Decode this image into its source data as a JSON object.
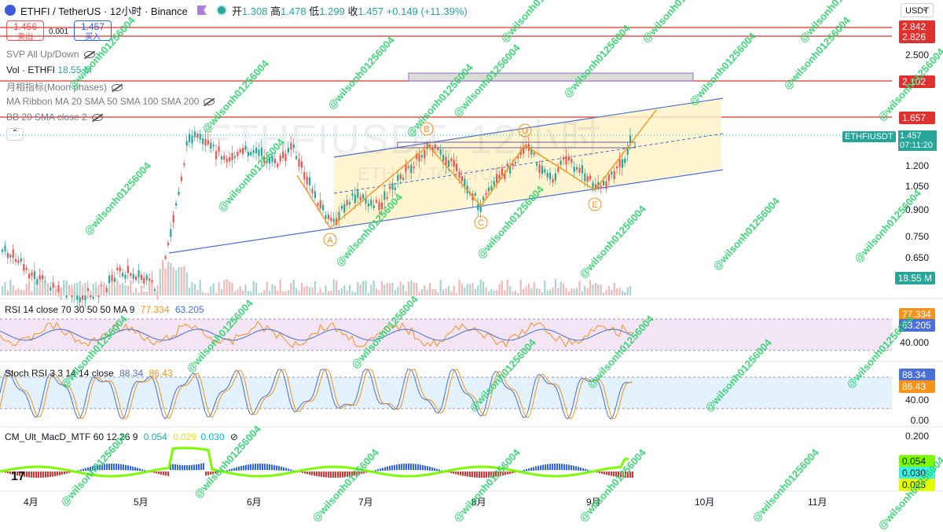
{
  "header": {
    "symbol_title": "ETHFI / TetherUS · 12小时 · Binance",
    "open_label": "开",
    "open": "1.308",
    "high_label": "高",
    "high": "1.478",
    "low_label": "低",
    "low": "1.299",
    "close_label": "收",
    "close": "1.457",
    "change": "+0.149 (+11.39%)",
    "currency_button": "USDT"
  },
  "trade": {
    "sell_price": "1.456",
    "sell_label": "卖出",
    "spread": "0.001",
    "buy_price": "1.457",
    "buy_label": "买入"
  },
  "indicators": {
    "svp": "SVP All Up/Down",
    "vol_name": "Vol · ETHFI",
    "vol_value": "18.55 M",
    "moon": "月相指标(Moon phases)",
    "ma_ribbon": "MA Ribbon MA 20 SMA 50 SMA 100 SMA 200",
    "bb": "BB 20 SMA close 2"
  },
  "chart_overlay": {
    "watermark_symbol": "ETHFIUSDT, 12小时",
    "watermark_sub": "ETHFI / TetherUS",
    "wave_labels": [
      "A",
      "B",
      "C",
      "D",
      "E"
    ]
  },
  "price_axis": {
    "ticks": [
      "2.500",
      "1.200",
      "1.050",
      "0.900",
      "0.750",
      "0.650"
    ],
    "tags": [
      {
        "text": "2.842",
        "color": "#e0312f"
      },
      {
        "text": "2.826",
        "color": "#e0312f"
      },
      {
        "text": "2.102",
        "color": "#e0312f"
      },
      {
        "text": "1.657",
        "color": "#e0312f"
      }
    ],
    "symbol_tag": "ETHFIUSDT",
    "last_price": "1.457",
    "countdown": "07:11:20",
    "volume_tag": "18.55 M"
  },
  "rsi": {
    "label": "RSI 14 close 70 30 50 50 MA 9",
    "value1": "77.334",
    "value2": "63.205",
    "axis_tick": "40.000",
    "tag1": "77.334",
    "tag2": "63.205"
  },
  "stoch": {
    "label": "Stoch RSI 3 3 14 14 close",
    "value1": "88.34",
    "value2": "86.43",
    "axis_ticks": [
      "40.00",
      "0.00"
    ],
    "tag1": "88.34",
    "tag2": "86.43"
  },
  "macd": {
    "label": "CM_Ult_MacD_MTF 60 12 26 9",
    "value1": "0.054",
    "value2": "0.029",
    "value3": "0.030",
    "axis_tick": "0.200",
    "tags": [
      "0.054",
      "0.030",
      "0.025"
    ]
  },
  "time_axis": {
    "months": [
      "4月",
      "5月",
      "6月",
      "7月",
      "8月",
      "9月",
      "10月",
      "11月"
    ]
  },
  "watermark_text": "@wilsonh01256004",
  "colors": {
    "up": "#26a69a",
    "down": "#ef5350",
    "resistance": "#e0312f",
    "channel": "#4a6fd6",
    "wave": "#f7931a",
    "rsi_fill": "#f3e5f5",
    "stoch_fill": "#e3f2fd"
  }
}
